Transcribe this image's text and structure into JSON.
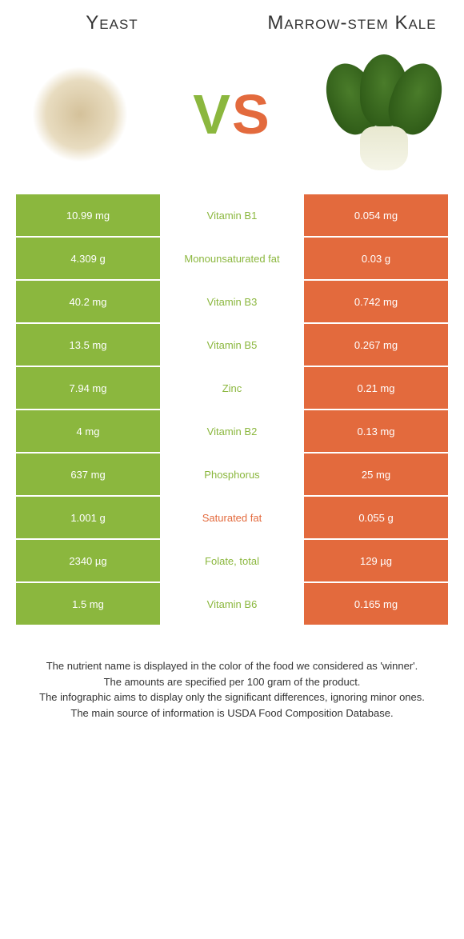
{
  "titles": {
    "left": "Yeast",
    "right": "Marrow-stem Kale"
  },
  "vs": {
    "v": "V",
    "s": "S"
  },
  "colors": {
    "green": "#8bb73e",
    "orange": "#e36a3d",
    "text_dark": "#333333",
    "white": "#ffffff"
  },
  "rows": [
    {
      "left": "10.99 mg",
      "name": "Vitamin B1",
      "right": "0.054 mg",
      "winner": "left"
    },
    {
      "left": "4.309 g",
      "name": "Monounsaturated fat",
      "right": "0.03 g",
      "winner": "left"
    },
    {
      "left": "40.2 mg",
      "name": "Vitamin B3",
      "right": "0.742 mg",
      "winner": "left"
    },
    {
      "left": "13.5 mg",
      "name": "Vitamin B5",
      "right": "0.267 mg",
      "winner": "left"
    },
    {
      "left": "7.94 mg",
      "name": "Zinc",
      "right": "0.21 mg",
      "winner": "left"
    },
    {
      "left": "4 mg",
      "name": "Vitamin B2",
      "right": "0.13 mg",
      "winner": "left"
    },
    {
      "left": "637 mg",
      "name": "Phosphorus",
      "right": "25 mg",
      "winner": "left"
    },
    {
      "left": "1.001 g",
      "name": "Saturated fat",
      "right": "0.055 g",
      "winner": "right"
    },
    {
      "left": "2340 µg",
      "name": "Folate, total",
      "right": "129 µg",
      "winner": "left"
    },
    {
      "left": "1.5 mg",
      "name": "Vitamin B6",
      "right": "0.165 mg",
      "winner": "left"
    }
  ],
  "footer": {
    "line1": "The nutrient name is displayed in the color of the food we considered as 'winner'.",
    "line2": "The amounts are specified per 100 gram of the product.",
    "line3": "The infographic aims to display only the significant differences, ignoring minor ones.",
    "line4": "The main source of information is USDA Food Composition Database."
  }
}
